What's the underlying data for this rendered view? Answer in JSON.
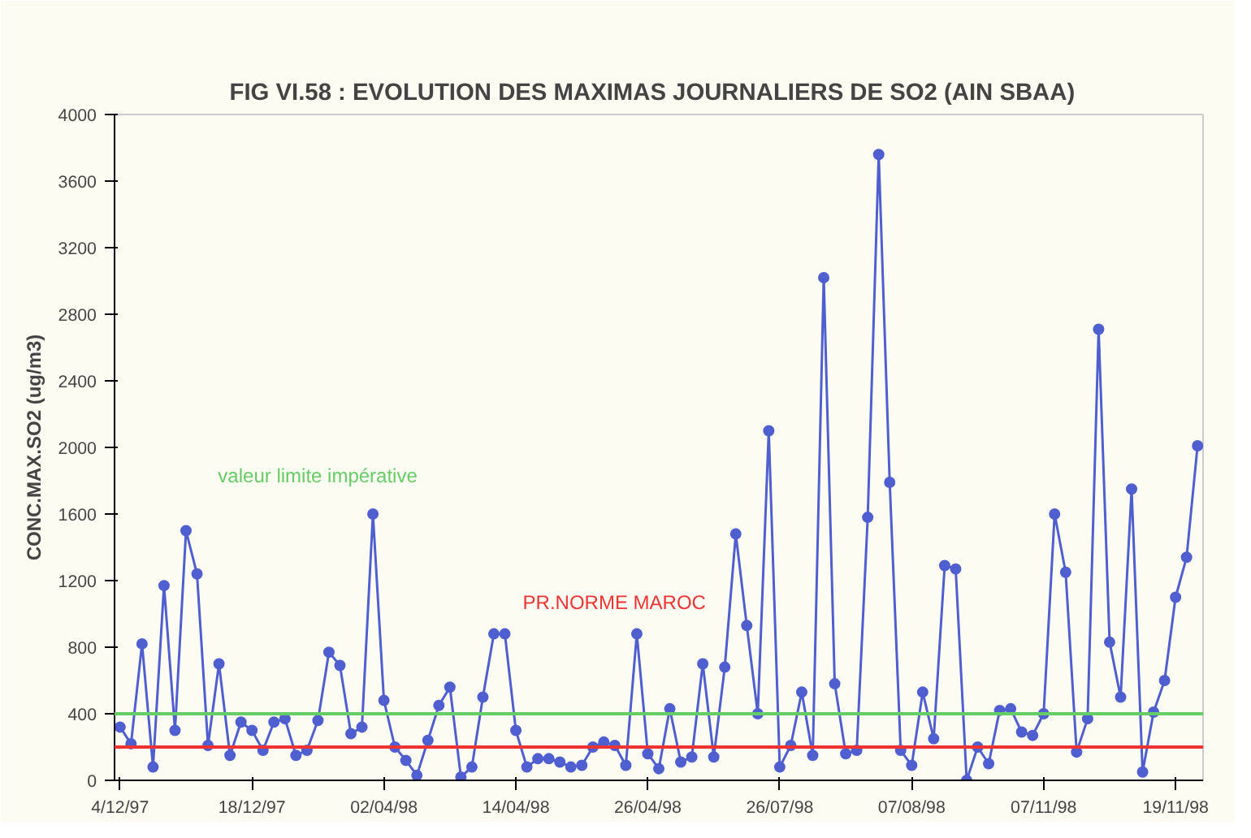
{
  "chart_data": {
    "type": "line",
    "title": "FIG VI.58  :  EVOLUTION DES MAXIMAS JOURNALIERS DE SO2 (AIN SBAA)",
    "ylabel": "CONC.MAX.SO2 (ug/m3)",
    "categories": [
      "4/12/97",
      null,
      null,
      null,
      null,
      null,
      null,
      null,
      null,
      null,
      null,
      null,
      "18/12/97",
      null,
      null,
      null,
      null,
      null,
      null,
      null,
      null,
      null,
      null,
      null,
      "02/04/98",
      null,
      null,
      null,
      null,
      null,
      null,
      null,
      null,
      null,
      null,
      null,
      "14/04/98",
      null,
      null,
      null,
      null,
      null,
      null,
      null,
      null,
      null,
      null,
      null,
      "26/04/98",
      null,
      null,
      null,
      null,
      null,
      null,
      null,
      null,
      null,
      null,
      null,
      "26/07/98",
      null,
      null,
      null,
      null,
      null,
      null,
      null,
      null,
      null,
      null,
      null,
      "07/08/98",
      null,
      null,
      null,
      null,
      null,
      null,
      null,
      null,
      null,
      null,
      null,
      "07/11/98",
      null,
      null,
      null,
      null,
      null,
      null,
      null,
      null,
      null,
      null,
      null,
      "19/11/98",
      null,
      null
    ],
    "series": [
      {
        "color": "#4f5fd0",
        "values": [
          320,
          220,
          820,
          80,
          1170,
          300,
          1500,
          1240,
          210,
          700,
          150,
          350,
          300,
          180,
          350,
          370,
          150,
          180,
          360,
          770,
          690,
          280,
          320,
          1600,
          480,
          200,
          120,
          30,
          240,
          450,
          560,
          20,
          80,
          500,
          880,
          880,
          300,
          80,
          130,
          130,
          110,
          80,
          90,
          200,
          230,
          210,
          90,
          880,
          160,
          70,
          430,
          110,
          140,
          700,
          140,
          680,
          1480,
          930,
          400,
          2100,
          80,
          210,
          530,
          150,
          3020,
          580,
          160,
          180,
          1580,
          3760,
          1790,
          180,
          90,
          530,
          250,
          1290,
          1270,
          0,
          200,
          100,
          420,
          430,
          290,
          270,
          400,
          1600,
          1250,
          170,
          370,
          2710,
          830,
          500,
          1750,
          50,
          410,
          600,
          1100,
          1340,
          2010
        ]
      }
    ],
    "ylim": [
      0,
      4000
    ],
    "yticks": [
      0,
      400,
      800,
      1200,
      1600,
      2000,
      2400,
      2800,
      3200,
      3600,
      4000
    ],
    "marker": "circle",
    "line_style": "solid",
    "grid": false,
    "ref_lines": [
      {
        "axis": "y",
        "value": 400,
        "label": "valeur limite impérative",
        "color": "#66cc66"
      },
      {
        "axis": "y",
        "value": 200,
        "label": "PR.NORME MAROC",
        "color": "#ee3333"
      }
    ]
  }
}
